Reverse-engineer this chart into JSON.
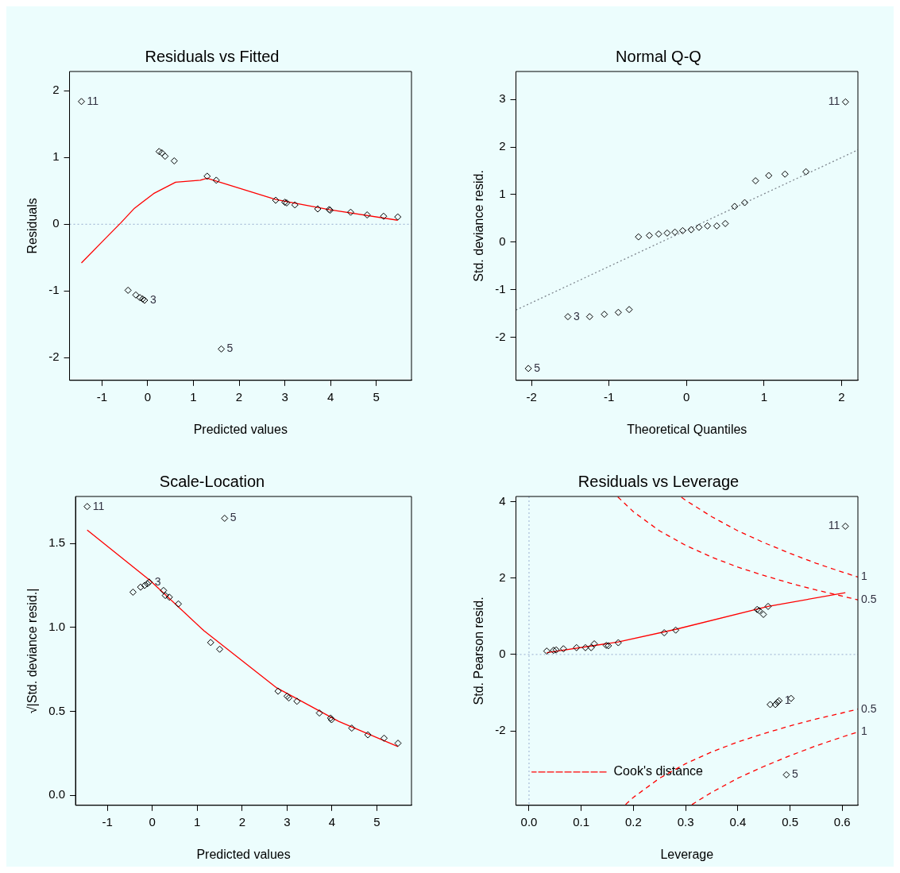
{
  "chart_data": [
    {
      "type": "scatter",
      "title": "Residuals vs Fitted",
      "xlabel": "Predicted values",
      "ylabel": "Residuals",
      "grid": false,
      "legend": false,
      "xlim": [
        -1.71,
        5.77
      ],
      "xticks": [
        -1,
        0,
        1,
        2,
        3,
        4,
        5
      ],
      "ylim": [
        -2.34,
        2.29
      ],
      "yticks": [
        -2,
        -1,
        0,
        1,
        2
      ],
      "series": [
        {
          "marker": "diamond",
          "color": "#000000",
          "x": [
            -1.45,
            0.25,
            0.31,
            0.38,
            0.58,
            1.3,
            1.5,
            2.8,
            3.0,
            3.04,
            3.22,
            3.72,
            3.97,
            3.99,
            4.44,
            4.8,
            5.16,
            5.47,
            -0.43,
            -0.26,
            -0.17,
            -0.11,
            -0.07,
            1.61
          ],
          "values": [
            1.84,
            1.09,
            1.07,
            1.02,
            0.95,
            0.72,
            0.66,
            0.36,
            0.33,
            0.32,
            0.29,
            0.23,
            0.22,
            0.21,
            0.18,
            0.14,
            0.12,
            0.11,
            -0.99,
            -1.06,
            -1.1,
            -1.12,
            -1.14,
            -1.87
          ]
        },
        {
          "type": "line",
          "color": "#ff0000",
          "line_style": "solid",
          "x": [
            -1.45,
            -0.95,
            -0.59,
            -0.29,
            0.13,
            0.61,
            1.15,
            1.3,
            2.8,
            3.97,
            5.47
          ],
          "values": [
            -0.58,
            -0.23,
            0.02,
            0.24,
            0.46,
            0.63,
            0.66,
            0.69,
            0.37,
            0.22,
            0.06
          ]
        }
      ],
      "ref_lines": [
        {
          "axis": "y",
          "value": 0,
          "color": "#a8bcd8",
          "line_style": "dotted"
        }
      ],
      "annotations": [
        {
          "text": "11",
          "x": -1.45,
          "y": 1.84
        },
        {
          "text": "3",
          "x": -0.07,
          "y": -1.14
        },
        {
          "text": "5",
          "x": 1.61,
          "y": -1.87
        }
      ]
    },
    {
      "type": "scatter",
      "title": "Normal Q-Q",
      "xlabel": "Theoretical Quantiles",
      "ylabel": "Std. deviance resid.",
      "grid": false,
      "legend": false,
      "xlim": [
        -2.2,
        2.21
      ],
      "xticks": [
        -2,
        -1,
        0,
        1,
        2
      ],
      "ylim": [
        -2.91,
        3.59
      ],
      "yticks": [
        -2,
        -1,
        0,
        1,
        2,
        3
      ],
      "series": [
        {
          "marker": "diamond",
          "color": "#000000",
          "x": [
            -2.04,
            -1.53,
            -1.25,
            -1.06,
            -0.88,
            -0.74,
            -0.62,
            -0.48,
            -0.36,
            -0.25,
            -0.15,
            -0.05,
            0.06,
            0.16,
            0.27,
            0.39,
            0.5,
            0.62,
            0.75,
            0.89,
            1.06,
            1.27,
            1.54,
            2.05
          ],
          "values": [
            -2.66,
            -1.57,
            -1.57,
            -1.52,
            -1.48,
            -1.42,
            0.11,
            0.14,
            0.17,
            0.19,
            0.21,
            0.24,
            0.26,
            0.31,
            0.34,
            0.34,
            0.39,
            0.75,
            0.83,
            1.29,
            1.4,
            1.43,
            1.48,
            2.95
          ]
        },
        {
          "type": "line",
          "color": "#808890",
          "line_style": "dotted",
          "x": [
            -2.2,
            2.21
          ],
          "values": [
            -1.43,
            1.94
          ]
        }
      ],
      "annotations": [
        {
          "text": "11",
          "x": 2.05,
          "y": 2.95
        },
        {
          "text": "3",
          "x": -1.53,
          "y": -1.57
        },
        {
          "text": "5",
          "x": -2.04,
          "y": -2.66
        }
      ]
    },
    {
      "type": "scatter",
      "title": "Scale-Location",
      "xlabel": "Predicted values",
      "ylabel": "√|Std. deviance resid.|",
      "grid": false,
      "legend": false,
      "xlim": [
        -1.71,
        5.77
      ],
      "xticks": [
        -1,
        0,
        1,
        2,
        3,
        4,
        5
      ],
      "ylim": [
        -0.06,
        1.78
      ],
      "yticks": [
        {
          "value": 0,
          "label": "0.0"
        },
        0.5,
        {
          "value": 1,
          "label": "1.0"
        },
        1.5
      ],
      "series": [
        {
          "marker": "diamond",
          "color": "#000000",
          "x": [
            -1.45,
            1.61,
            -0.43,
            -0.26,
            -0.17,
            -0.11,
            -0.07,
            0.25,
            0.29,
            0.38,
            0.58,
            1.3,
            1.5,
            2.8,
            3.0,
            3.04,
            3.22,
            3.72,
            3.97,
            3.99,
            4.44,
            4.8,
            5.16,
            5.47
          ],
          "values": [
            1.72,
            1.65,
            1.21,
            1.24,
            1.25,
            1.26,
            1.27,
            1.22,
            1.19,
            1.18,
            1.14,
            0.91,
            0.87,
            0.62,
            0.59,
            0.58,
            0.56,
            0.49,
            0.46,
            0.45,
            0.4,
            0.36,
            0.34,
            0.31
          ]
        },
        {
          "type": "line",
          "color": "#ff0000",
          "line_style": "solid",
          "x": [
            -1.45,
            -0.05,
            1.15,
            2.77,
            4.15,
            5.47
          ],
          "values": [
            1.58,
            1.28,
            0.98,
            0.64,
            0.44,
            0.29
          ]
        }
      ],
      "annotations": [
        {
          "text": "11",
          "x": -1.45,
          "y": 1.72
        },
        {
          "text": "3",
          "x": -0.07,
          "y": 1.27
        },
        {
          "text": "5",
          "x": 1.61,
          "y": 1.65
        }
      ]
    },
    {
      "type": "scatter",
      "title": "Residuals vs Leverage",
      "xlabel": "Leverage",
      "ylabel": "Std. Pearson resid.",
      "grid": false,
      "legend": "bottom left",
      "xlim": [
        -0.025,
        0.63
      ],
      "xticks": [
        {
          "value": 0,
          "label": "0.0"
        },
        0.1,
        0.2,
        0.3,
        0.4,
        0.5,
        0.6
      ],
      "ylim": [
        -3.95,
        4.14
      ],
      "yticks": [
        -2,
        0,
        2,
        4
      ],
      "series": [
        {
          "marker": "diamond",
          "color": "#000000",
          "x": [
            0.034,
            0.047,
            0.052,
            0.066,
            0.091,
            0.108,
            0.119,
            0.125,
            0.148,
            0.152,
            0.171,
            0.259,
            0.281,
            0.437,
            0.441,
            0.449,
            0.458,
            0.606,
            0.462,
            0.472,
            0.476,
            0.479,
            0.502,
            0.493
          ],
          "values": [
            0.09,
            0.11,
            0.12,
            0.15,
            0.18,
            0.18,
            0.18,
            0.28,
            0.24,
            0.23,
            0.31,
            0.57,
            0.64,
            1.18,
            1.15,
            1.05,
            1.26,
            3.36,
            -1.31,
            -1.31,
            -1.25,
            -1.21,
            -1.15,
            -3.15
          ]
        },
        {
          "type": "line",
          "color": "#ff0000",
          "line_style": "solid",
          "x": [
            0.034,
            0.171,
            0.281,
            0.458,
            0.606
          ],
          "values": [
            0.05,
            0.33,
            0.66,
            1.26,
            1.62
          ]
        },
        {
          "type": "line",
          "name": "Cook's distance",
          "color": "#ff0000",
          "line_style": "dashed",
          "x": [
            0.17,
            0.2,
            0.25,
            0.3,
            0.35,
            0.4,
            0.45,
            0.5,
            0.55,
            0.6,
            0.63
          ],
          "values": [
            4.13,
            3.74,
            3.24,
            2.86,
            2.55,
            2.29,
            2.07,
            1.87,
            1.69,
            1.53,
            1.43
          ]
        },
        {
          "type": "line",
          "color": "#ff0000",
          "line_style": "dashed",
          "x": [
            0.292,
            0.3,
            0.35,
            0.4,
            0.45,
            0.5,
            0.55,
            0.6,
            0.63
          ],
          "values": [
            4.12,
            4.04,
            3.61,
            3.24,
            2.93,
            2.65,
            2.39,
            2.16,
            2.03
          ]
        },
        {
          "type": "line",
          "color": "#ff0000",
          "line_style": "dashed",
          "x": [
            0.185,
            0.2,
            0.25,
            0.3,
            0.35,
            0.4,
            0.45,
            0.5,
            0.55,
            0.6,
            0.63
          ],
          "values": [
            -3.93,
            -3.74,
            -3.24,
            -2.86,
            -2.55,
            -2.29,
            -2.07,
            -1.87,
            -1.69,
            -1.53,
            -1.43
          ]
        },
        {
          "type": "line",
          "color": "#ff0000",
          "line_style": "dashed",
          "x": [
            0.312,
            0.35,
            0.4,
            0.45,
            0.5,
            0.55,
            0.6,
            0.63
          ],
          "values": [
            -3.93,
            -3.61,
            -3.24,
            -2.93,
            -2.65,
            -2.39,
            -2.16,
            -2.03
          ]
        }
      ],
      "ref_lines": [
        {
          "axis": "y",
          "value": 0,
          "color": "#a8bcd8",
          "line_style": "dotted"
        },
        {
          "axis": "x",
          "value": 0,
          "color": "#a8bcd8",
          "line_style": "dotted"
        }
      ],
      "annotations": [
        {
          "text": "11",
          "x": 0.606,
          "y": 3.36
        },
        {
          "text": "1",
          "x": 0.479,
          "y": -1.21
        },
        {
          "text": "5",
          "x": 0.493,
          "y": -3.15
        },
        {
          "text": "1",
          "x": 0.63,
          "y": 2.03
        },
        {
          "text": "0.5",
          "x": 0.63,
          "y": 1.43
        },
        {
          "text": "0.5",
          "x": 0.63,
          "y": -1.43
        },
        {
          "text": "1",
          "x": 0.63,
          "y": -2.03
        }
      ]
    }
  ]
}
